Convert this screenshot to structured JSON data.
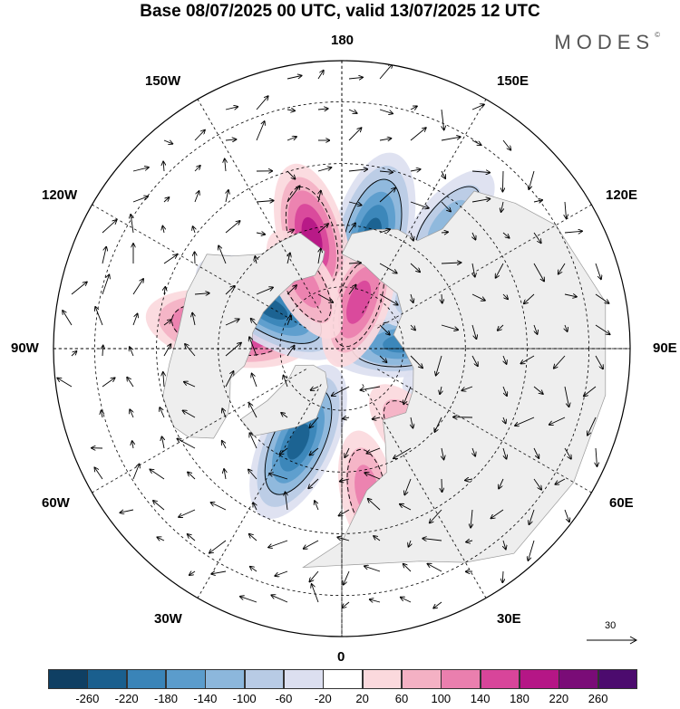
{
  "title": "Base 08/07/2025 00 UTC, valid 13/07/2025 12 UTC",
  "brand": "MODES",
  "brand_mark": "©",
  "lon_labels": {
    "top": "180",
    "bottom": "0",
    "left": "90W",
    "right": "90E",
    "upper_left_1": "150W",
    "upper_left_2": "120W",
    "lower_left_1": "60W",
    "lower_left_2": "30W",
    "upper_right_1": "150E",
    "upper_right_2": "120E",
    "lower_right_1": "60E",
    "lower_right_2": "30E"
  },
  "reference_vector": "30",
  "colorbar": {
    "ticks": [
      "-260",
      "-220",
      "-180",
      "-140",
      "-100",
      "-60",
      "-20",
      "20",
      "60",
      "100",
      "140",
      "180",
      "220",
      "260"
    ],
    "colors": [
      "#0f3f63",
      "#1a5f8e",
      "#3a84b8",
      "#5b9ccc",
      "#8cb7dc",
      "#b8cbe5",
      "#dcdff0",
      "#ffffff",
      "#fbd9dd",
      "#f4b1c4",
      "#ea7fae",
      "#d8459a",
      "#b51686",
      "#7a0c77",
      "#4c0b6e"
    ]
  },
  "anomalies": [
    {
      "sign": "neg",
      "level": -260,
      "lon": 165,
      "lat": 62
    },
    {
      "sign": "pos",
      "level": 200,
      "lon": -165,
      "lat": 62
    },
    {
      "sign": "pos",
      "level": 220,
      "lon": 95,
      "lat": 62
    },
    {
      "sign": "neg",
      "level": -200,
      "lon": 65,
      "lat": 55
    },
    {
      "sign": "pos",
      "level": 240,
      "lon": -100,
      "lat": 62
    },
    {
      "sign": "neg",
      "level": -240,
      "lon": -120,
      "lat": 70
    },
    {
      "sign": "neg",
      "level": -240,
      "lon": -25,
      "lat": 65
    },
    {
      "sign": "neg",
      "level": -200,
      "lon": 95,
      "lat": 75
    },
    {
      "sign": "pos",
      "level": 140,
      "lon": 40,
      "lat": 62
    },
    {
      "sign": "pos",
      "level": 120,
      "lon": 10,
      "lat": 55
    },
    {
      "sign": "neg",
      "level": -180,
      "lon": 125,
      "lat": 60
    },
    {
      "sign": "pos",
      "level": 160,
      "lon": 160,
      "lat": 78
    },
    {
      "sign": "pos",
      "level": 120,
      "lon": -150,
      "lat": 72
    },
    {
      "sign": "neg",
      "level": -140,
      "lon": 140,
      "lat": 50
    },
    {
      "sign": "neg",
      "level": -100,
      "lon": 35,
      "lat": 45
    }
  ]
}
